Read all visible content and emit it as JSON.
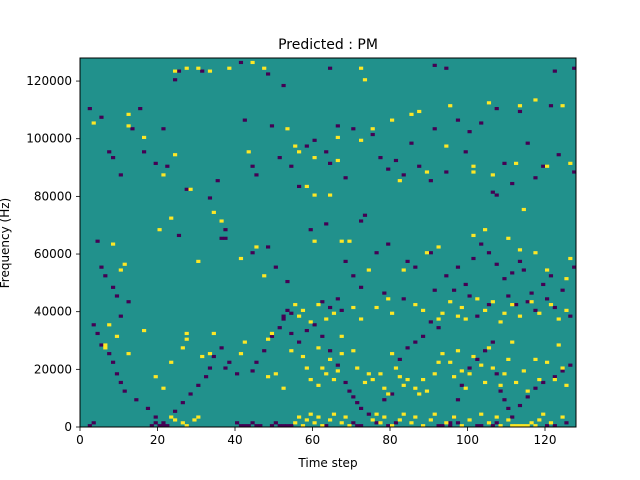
{
  "chart_data": {
    "type": "heatmap",
    "title": "Predicted : PM",
    "xlabel": "Time step",
    "ylabel": "Frequency (Hz)",
    "xlim": [
      0,
      128
    ],
    "ylim": [
      0,
      128000
    ],
    "x_ticks": [
      0,
      20,
      40,
      60,
      80,
      100,
      120
    ],
    "y_ticks": [
      0,
      20000,
      40000,
      60000,
      80000,
      100000,
      120000
    ],
    "grid_cols": 128,
    "grid_rows": 128,
    "row_unit_hz": 1000,
    "colors": {
      "background": "#21918c",
      "low": "#440154",
      "high": "#fde725"
    },
    "cells_high": [
      [
        3,
        105
      ],
      [
        12,
        108
      ],
      [
        12,
        104
      ],
      [
        16,
        100
      ],
      [
        24,
        123
      ],
      [
        24,
        94
      ],
      [
        27,
        124
      ],
      [
        30,
        124
      ],
      [
        28,
        82
      ],
      [
        23,
        72
      ],
      [
        21,
        87
      ],
      [
        43,
        95
      ],
      [
        33,
        123
      ],
      [
        38,
        124
      ],
      [
        44,
        126
      ],
      [
        47,
        124
      ],
      [
        53,
        103
      ],
      [
        55,
        97
      ],
      [
        56,
        95
      ],
      [
        60,
        93
      ],
      [
        58,
        83
      ],
      [
        60,
        80
      ],
      [
        64,
        80
      ],
      [
        66,
        92
      ],
      [
        66,
        100
      ],
      [
        72,
        99
      ],
      [
        75,
        103
      ],
      [
        72,
        124
      ],
      [
        73,
        120
      ],
      [
        80,
        106
      ],
      [
        82,
        85
      ],
      [
        85,
        108
      ],
      [
        87,
        109
      ],
      [
        89,
        88
      ],
      [
        94,
        97
      ],
      [
        95,
        111
      ],
      [
        105,
        112
      ],
      [
        101,
        90
      ],
      [
        101,
        88
      ],
      [
        106,
        87
      ],
      [
        113,
        111
      ],
      [
        112,
        91
      ],
      [
        114,
        75
      ],
      [
        117,
        113
      ],
      [
        120,
        90
      ],
      [
        124,
        111
      ],
      [
        126,
        91
      ],
      [
        8,
        63
      ],
      [
        11,
        56
      ],
      [
        10,
        54
      ],
      [
        20,
        68
      ],
      [
        30,
        57
      ],
      [
        34,
        74
      ],
      [
        36,
        71
      ],
      [
        41,
        58
      ],
      [
        45,
        62
      ],
      [
        47,
        52
      ],
      [
        60,
        64
      ],
      [
        67,
        64
      ],
      [
        69,
        64
      ],
      [
        74,
        54
      ],
      [
        83,
        54
      ],
      [
        89,
        60
      ],
      [
        92,
        62
      ],
      [
        101,
        66
      ],
      [
        104,
        68
      ],
      [
        110,
        65
      ],
      [
        113,
        61
      ],
      [
        117,
        60
      ],
      [
        120,
        54
      ],
      [
        125,
        51
      ],
      [
        126,
        58
      ],
      [
        7,
        35
      ],
      [
        6,
        28
      ],
      [
        6,
        27
      ],
      [
        9,
        31
      ],
      [
        12,
        25
      ],
      [
        16,
        33
      ],
      [
        19,
        17
      ],
      [
        21,
        13
      ],
      [
        23,
        22
      ],
      [
        26,
        27
      ],
      [
        27,
        32
      ],
      [
        27,
        30
      ],
      [
        31,
        24
      ],
      [
        33,
        25
      ],
      [
        34,
        32
      ],
      [
        42,
        29
      ],
      [
        41,
        25
      ],
      [
        48,
        30
      ],
      [
        49,
        32
      ],
      [
        48,
        17
      ],
      [
        50,
        18
      ],
      [
        52,
        13
      ],
      [
        54,
        26
      ],
      [
        57,
        24
      ],
      [
        58,
        20
      ],
      [
        59,
        16
      ],
      [
        61,
        14
      ],
      [
        61,
        27
      ],
      [
        62,
        20
      ],
      [
        63,
        18
      ],
      [
        64,
        23
      ],
      [
        65,
        16
      ],
      [
        66,
        19
      ],
      [
        67,
        25
      ],
      [
        67,
        31
      ],
      [
        70,
        26
      ],
      [
        71,
        20
      ],
      [
        73,
        15
      ],
      [
        74,
        18
      ],
      [
        75,
        16
      ],
      [
        77,
        18
      ],
      [
        78,
        13
      ],
      [
        79,
        11
      ],
      [
        80,
        25
      ],
      [
        81,
        20
      ],
      [
        82,
        17
      ],
      [
        83,
        14
      ],
      [
        84,
        16
      ],
      [
        86,
        13
      ],
      [
        87,
        11
      ],
      [
        88,
        16
      ],
      [
        89,
        12
      ],
      [
        91,
        18
      ],
      [
        92,
        22
      ],
      [
        93,
        25
      ],
      [
        95,
        22
      ],
      [
        96,
        17
      ],
      [
        97,
        26
      ],
      [
        98,
        19
      ],
      [
        99,
        13
      ],
      [
        100,
        18
      ],
      [
        101,
        24
      ],
      [
        103,
        21
      ],
      [
        104,
        15
      ],
      [
        105,
        27
      ],
      [
        106,
        20
      ],
      [
        108,
        14
      ],
      [
        109,
        18
      ],
      [
        110,
        23
      ],
      [
        111,
        29
      ],
      [
        112,
        15
      ],
      [
        114,
        19
      ],
      [
        115,
        12
      ],
      [
        117,
        23
      ],
      [
        118,
        16
      ],
      [
        120,
        22
      ],
      [
        122,
        16
      ],
      [
        123,
        28
      ],
      [
        124,
        20
      ],
      [
        125,
        14
      ],
      [
        55,
        42
      ],
      [
        56,
        38
      ],
      [
        57,
        40
      ],
      [
        59,
        36
      ],
      [
        61,
        42
      ],
      [
        63,
        37
      ],
      [
        65,
        39
      ],
      [
        70,
        41
      ],
      [
        72,
        37
      ],
      [
        76,
        41
      ],
      [
        79,
        44
      ],
      [
        80,
        39
      ],
      [
        86,
        42
      ],
      [
        88,
        40
      ],
      [
        92,
        37
      ],
      [
        93,
        39
      ],
      [
        95,
        43
      ],
      [
        97,
        38
      ],
      [
        98,
        41
      ],
      [
        99,
        37
      ],
      [
        102,
        44
      ],
      [
        104,
        40
      ],
      [
        106,
        43
      ],
      [
        108,
        36
      ],
      [
        109,
        39
      ],
      [
        111,
        42
      ],
      [
        113,
        38
      ],
      [
        116,
        43
      ],
      [
        118,
        39
      ],
      [
        121,
        42
      ],
      [
        123,
        37
      ],
      [
        125,
        40
      ],
      [
        23,
        3
      ],
      [
        24,
        2
      ],
      [
        26,
        1
      ],
      [
        27,
        0
      ],
      [
        29,
        2
      ],
      [
        30,
        3
      ],
      [
        55,
        1
      ],
      [
        56,
        3
      ],
      [
        57,
        0
      ],
      [
        58,
        2
      ],
      [
        59,
        4
      ],
      [
        60,
        1
      ],
      [
        61,
        3
      ],
      [
        62,
        0
      ],
      [
        64,
        2
      ],
      [
        65,
        4
      ],
      [
        67,
        1
      ],
      [
        68,
        3
      ],
      [
        69,
        0
      ],
      [
        75,
        2
      ],
      [
        76,
        4
      ],
      [
        77,
        1
      ],
      [
        78,
        3
      ],
      [
        80,
        0
      ],
      [
        82,
        2
      ],
      [
        83,
        4
      ],
      [
        85,
        1
      ],
      [
        86,
        3
      ],
      [
        88,
        0
      ],
      [
        90,
        2
      ],
      [
        91,
        4
      ],
      [
        94,
        1
      ],
      [
        96,
        3
      ],
      [
        98,
        0
      ],
      [
        100,
        2
      ],
      [
        103,
        4
      ],
      [
        105,
        1
      ],
      [
        107,
        3
      ],
      [
        108,
        0
      ],
      [
        110,
        2
      ],
      [
        111,
        0
      ],
      [
        112,
        0
      ],
      [
        113,
        0
      ],
      [
        114,
        0
      ],
      [
        115,
        0
      ],
      [
        116,
        1
      ],
      [
        117,
        0
      ],
      [
        118,
        2
      ],
      [
        119,
        4
      ],
      [
        121,
        1
      ],
      [
        124,
        3
      ]
    ],
    "cells_low": [
      [
        2,
        110
      ],
      [
        5,
        107
      ],
      [
        7,
        95
      ],
      [
        8,
        93
      ],
      [
        10,
        87
      ],
      [
        13,
        103
      ],
      [
        16,
        95
      ],
      [
        19,
        91
      ],
      [
        22,
        90
      ],
      [
        24,
        120
      ],
      [
        27,
        82
      ],
      [
        33,
        79
      ],
      [
        35,
        85
      ],
      [
        36,
        65
      ],
      [
        37,
        65
      ],
      [
        42,
        106
      ],
      [
        44,
        90
      ],
      [
        45,
        87
      ],
      [
        49,
        104
      ],
      [
        51,
        93
      ],
      [
        54,
        90
      ],
      [
        56,
        83
      ],
      [
        58,
        97
      ],
      [
        60,
        99
      ],
      [
        63,
        95
      ],
      [
        64,
        91
      ],
      [
        66,
        104
      ],
      [
        68,
        86
      ],
      [
        70,
        103
      ],
      [
        72,
        71
      ],
      [
        73,
        73
      ],
      [
        75,
        101
      ],
      [
        77,
        93
      ],
      [
        79,
        89
      ],
      [
        81,
        92
      ],
      [
        83,
        87
      ],
      [
        85,
        98
      ],
      [
        87,
        90
      ],
      [
        90,
        85
      ],
      [
        91,
        103
      ],
      [
        94,
        88
      ],
      [
        97,
        106
      ],
      [
        99,
        95
      ],
      [
        100,
        102
      ],
      [
        103,
        105
      ],
      [
        106,
        81
      ],
      [
        107,
        80
      ],
      [
        109,
        91
      ],
      [
        111,
        84
      ],
      [
        113,
        109
      ],
      [
        115,
        98
      ],
      [
        117,
        86
      ],
      [
        119,
        90
      ],
      [
        121,
        111
      ],
      [
        123,
        94
      ],
      [
        127,
        88
      ],
      [
        127,
        124
      ],
      [
        122,
        123
      ],
      [
        107,
        110
      ],
      [
        94,
        124
      ],
      [
        91,
        125
      ],
      [
        64,
        124
      ],
      [
        52,
        118
      ],
      [
        48,
        122
      ],
      [
        41,
        126
      ],
      [
        31,
        123
      ],
      [
        25,
        123
      ],
      [
        21,
        103
      ],
      [
        15,
        110
      ],
      [
        4,
        64
      ],
      [
        5,
        55
      ],
      [
        6,
        52
      ],
      [
        8,
        48
      ],
      [
        9,
        45
      ],
      [
        10,
        38
      ],
      [
        12,
        43
      ],
      [
        25,
        66
      ],
      [
        37,
        68
      ],
      [
        44,
        60
      ],
      [
        48,
        62
      ],
      [
        50,
        55
      ],
      [
        53,
        50
      ],
      [
        59,
        68
      ],
      [
        63,
        70
      ],
      [
        68,
        57
      ],
      [
        70,
        52
      ],
      [
        72,
        48
      ],
      [
        76,
        60
      ],
      [
        79,
        63
      ],
      [
        84,
        57
      ],
      [
        86,
        55
      ],
      [
        90,
        60
      ],
      [
        94,
        52
      ],
      [
        97,
        55
      ],
      [
        99,
        49
      ],
      [
        101,
        58
      ],
      [
        103,
        63
      ],
      [
        105,
        60
      ],
      [
        107,
        56
      ],
      [
        109,
        51
      ],
      [
        111,
        53
      ],
      [
        113,
        57
      ],
      [
        114,
        54
      ],
      [
        116,
        46
      ],
      [
        119,
        49
      ],
      [
        121,
        52
      ],
      [
        124,
        47
      ],
      [
        127,
        55
      ],
      [
        3,
        35
      ],
      [
        4,
        32
      ],
      [
        5,
        28
      ],
      [
        7,
        25
      ],
      [
        8,
        22
      ],
      [
        9,
        18
      ],
      [
        10,
        15
      ],
      [
        11,
        12
      ],
      [
        14,
        9
      ],
      [
        17,
        6
      ],
      [
        19,
        3
      ],
      [
        21,
        1
      ],
      [
        24,
        5
      ],
      [
        26,
        8
      ],
      [
        28,
        11
      ],
      [
        30,
        14
      ],
      [
        32,
        17
      ],
      [
        33,
        20
      ],
      [
        34,
        24
      ],
      [
        36,
        27
      ],
      [
        37,
        20
      ],
      [
        38,
        22
      ],
      [
        40,
        18
      ],
      [
        44,
        19
      ],
      [
        45,
        22
      ],
      [
        47,
        26
      ],
      [
        49,
        31
      ],
      [
        51,
        34
      ],
      [
        52,
        37
      ],
      [
        54,
        32
      ],
      [
        56,
        29
      ],
      [
        58,
        33
      ],
      [
        60,
        35
      ],
      [
        62,
        31
      ],
      [
        64,
        26
      ],
      [
        66,
        21
      ],
      [
        68,
        15
      ],
      [
        69,
        12
      ],
      [
        70,
        10
      ],
      [
        71,
        8
      ],
      [
        72,
        6
      ],
      [
        74,
        4
      ],
      [
        76,
        1
      ],
      [
        78,
        9
      ],
      [
        80,
        11
      ],
      [
        82,
        23
      ],
      [
        84,
        27
      ],
      [
        86,
        29
      ],
      [
        88,
        31
      ],
      [
        90,
        36
      ],
      [
        92,
        34
      ],
      [
        95,
        1
      ],
      [
        96,
        3
      ],
      [
        97,
        9
      ],
      [
        98,
        14
      ],
      [
        100,
        20
      ],
      [
        102,
        23
      ],
      [
        104,
        26
      ],
      [
        106,
        29
      ],
      [
        107,
        18
      ],
      [
        108,
        12
      ],
      [
        109,
        9
      ],
      [
        110,
        6
      ],
      [
        111,
        3
      ],
      [
        113,
        7
      ],
      [
        115,
        10
      ],
      [
        117,
        13
      ],
      [
        119,
        15
      ],
      [
        122,
        17
      ],
      [
        124,
        19
      ],
      [
        126,
        21
      ],
      [
        52,
        38
      ],
      [
        53,
        40
      ],
      [
        54,
        39
      ],
      [
        62,
        43
      ],
      [
        64,
        41
      ],
      [
        66,
        44
      ],
      [
        67,
        40
      ],
      [
        78,
        46
      ],
      [
        83,
        44
      ],
      [
        91,
        47
      ],
      [
        96,
        47
      ],
      [
        100,
        45
      ],
      [
        102,
        38
      ],
      [
        105,
        42
      ],
      [
        110,
        45
      ],
      [
        112,
        42
      ],
      [
        115,
        43
      ],
      [
        117,
        40
      ],
      [
        120,
        44
      ],
      [
        122,
        41
      ],
      [
        126,
        38
      ],
      [
        2,
        0
      ],
      [
        3,
        1
      ],
      [
        18,
        0
      ],
      [
        19,
        1
      ],
      [
        20,
        0
      ],
      [
        21,
        0
      ],
      [
        22,
        0
      ],
      [
        40,
        1
      ],
      [
        41,
        0
      ],
      [
        42,
        0
      ],
      [
        43,
        0
      ],
      [
        44,
        1
      ],
      [
        45,
        0
      ],
      [
        46,
        0
      ],
      [
        49,
        0
      ],
      [
        50,
        1
      ],
      [
        51,
        0
      ],
      [
        52,
        0
      ],
      [
        53,
        0
      ],
      [
        54,
        0
      ],
      [
        63,
        0
      ],
      [
        70,
        1
      ],
      [
        71,
        0
      ],
      [
        72,
        0
      ],
      [
        79,
        0
      ],
      [
        81,
        1
      ],
      [
        92,
        0
      ],
      [
        93,
        0
      ],
      [
        95,
        0
      ],
      [
        97,
        1
      ],
      [
        102,
        0
      ],
      [
        103,
        0
      ],
      [
        106,
        0
      ],
      [
        107,
        1
      ],
      [
        120,
        0
      ],
      [
        122,
        0
      ],
      [
        125,
        1
      ]
    ]
  }
}
